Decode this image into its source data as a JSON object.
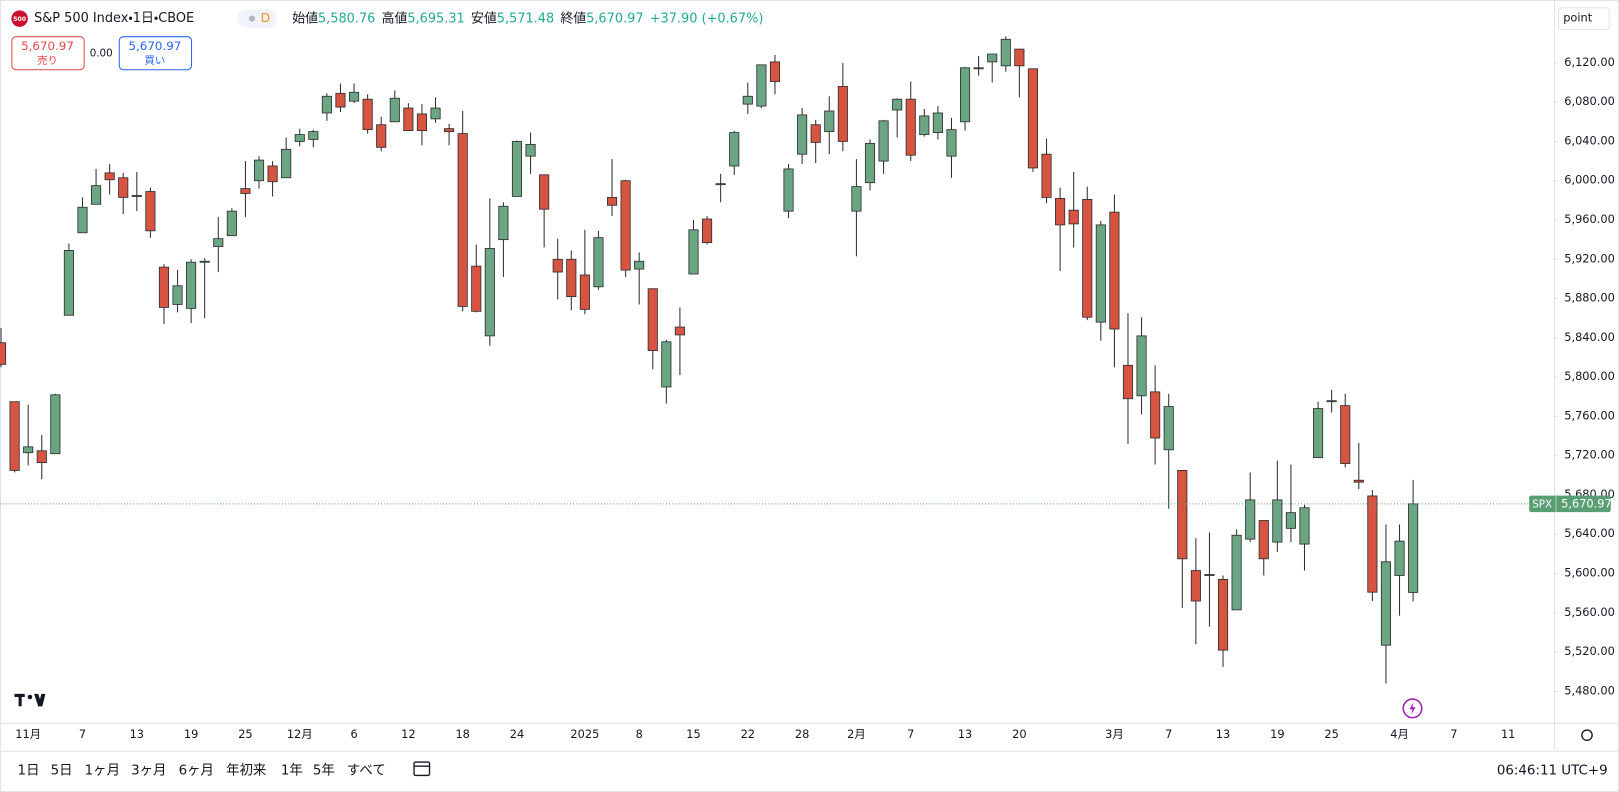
{
  "header": {
    "icon_text": "500",
    "title": "S&P 500 Index・1日・CBOE",
    "interval_badge": "D",
    "ohlc": [
      {
        "label": "始値",
        "value": "5,580.76"
      },
      {
        "label": "高値",
        "value": "5,695.31"
      },
      {
        "label": "安値",
        "value": "5,571.48"
      },
      {
        "label": "終値",
        "value": "5,670.97"
      }
    ],
    "change": "+37.90 (+0.67%)"
  },
  "trade_panel": {
    "sell_price": "5,670.97",
    "sell_label": "売り",
    "spread": "0.00",
    "buy_price": "5,670.97",
    "buy_label": "買い"
  },
  "chart_data": {
    "type": "candlestick",
    "price_axis_unit": "point",
    "categories": [
      null,
      null,
      "11月",
      null,
      null,
      null,
      "7",
      null,
      null,
      null,
      "13",
      null,
      null,
      null,
      "19",
      null,
      null,
      null,
      "25",
      null,
      null,
      null,
      "12月",
      null,
      null,
      null,
      "6",
      null,
      null,
      null,
      "12",
      null,
      null,
      null,
      "18",
      null,
      null,
      null,
      "24",
      null,
      null,
      null,
      null,
      "2025",
      null,
      null,
      null,
      "8",
      null,
      null,
      null,
      "15",
      null,
      null,
      null,
      "22",
      null,
      null,
      null,
      "28",
      null,
      null,
      null,
      "2月",
      null,
      null,
      null,
      "7",
      null,
      null,
      null,
      "13",
      null,
      null,
      null,
      "20",
      null,
      null,
      null,
      null,
      null,
      null,
      "3月",
      null,
      null,
      null,
      "7",
      null,
      null,
      null,
      "13",
      null,
      null,
      null,
      "19",
      null,
      null,
      null,
      "25",
      null,
      null,
      null,
      null,
      "4月",
      null,
      null,
      null,
      "7",
      null,
      null,
      null,
      "11"
    ],
    "open": [
      5835,
      5775,
      5723,
      5725,
      5722,
      5863,
      5947,
      5976,
      6008,
      6003,
      5985,
      5989,
      5912,
      5874,
      5870,
      5917,
      5933,
      5944,
      5992,
      6000,
      6015,
      6003,
      6040,
      6042,
      6069,
      6089,
      6081,
      6083,
      6057,
      6060,
      6074,
      6068,
      6063,
      6053,
      6048,
      5913,
      5842,
      5940,
      5984,
      6025,
      6006,
      5920,
      5920,
      5904,
      5892,
      5983,
      6000,
      5910,
      5890,
      5790,
      5851,
      5905,
      5961,
      5996,
      6015,
      6078,
      6076,
      6121,
      5969,
      6027,
      6057,
      6050,
      6096,
      5969,
      5998,
      6020,
      6072,
      6083,
      6047,
      6049,
      6025,
      6060,
      6115,
      6121,
      6117,
      6134,
      6114,
      6027,
      5982,
      5970,
      5981,
      5856,
      5968,
      5812,
      5781,
      5785,
      5726,
      5705,
      5603,
      5599,
      5594,
      5563,
      5635,
      5654,
      5632,
      5646,
      5630,
      5718,
      5775,
      5771,
      5695,
      5679,
      5527,
      5598,
      5580.76,
      null,
      null,
      null,
      null,
      null,
      null,
      null
    ],
    "high": [
      5850,
      5775,
      5772,
      5741,
      5783,
      5936,
      5983,
      6012,
      6017,
      6008,
      6009,
      5993,
      5915,
      5909,
      5920,
      5921,
      5963,
      5972,
      6020,
      6025,
      6020,
      6044,
      6053,
      6052,
      6089,
      6099,
      6099,
      6088,
      6065,
      6092,
      6079,
      6078,
      6085,
      6058,
      6071,
      5935,
      5982,
      5978,
      6041,
      6049,
      6006,
      5941,
      5929,
      5950,
      5949,
      6022,
      6001,
      5927,
      5890,
      5838,
      5871,
      5960,
      5964,
      6007,
      6051,
      6100,
      6118,
      6128,
      6017,
      6074,
      6062,
      6086,
      6120,
      6022,
      6042,
      6062,
      6084,
      6101,
      6073,
      6076,
      6064,
      6116,
      6127,
      6129,
      6147,
      6134,
      6114,
      6043,
      5993,
      6009,
      5994,
      5959,
      5986,
      5865,
      5861,
      5812,
      5783,
      5705,
      5636,
      5642,
      5598,
      5645,
      5703,
      5654,
      5715,
      5711,
      5670,
      5775,
      5787,
      5783,
      5733,
      5685,
      5650,
      5650,
      5695.31,
      null,
      null,
      null,
      null,
      null,
      null,
      null
    ],
    "low": [
      5810,
      5703,
      5710,
      5696,
      5722,
      5863,
      5947,
      5976,
      5986,
      5966,
      5969,
      5942,
      5854,
      5866,
      5855,
      5860,
      5907,
      5944,
      5963,
      5992,
      5984,
      6003,
      6035,
      6034,
      6061,
      6070,
      6079,
      6048,
      6030,
      6060,
      6051,
      6036,
      6059,
      6036,
      5867,
      5866,
      5832,
      5902,
      5984,
      6007,
      5932,
      5879,
      5868,
      5864,
      5889,
      5964,
      5902,
      5874,
      5808,
      5773,
      5802,
      5905,
      5935,
      5978,
      6006,
      6068,
      6074,
      6088,
      5962,
      6017,
      6018,
      6027,
      6030,
      5923,
      5990,
      6007,
      6044,
      6020,
      6045,
      6042,
      6003,
      6051,
      6107,
      6100,
      6111,
      6085,
      6009,
      5977,
      5908,
      5932,
      5858,
      5837,
      5810,
      5732,
      5762,
      5711,
      5666,
      5565,
      5528,
      5546,
      5505,
      5563,
      5632,
      5598,
      5622,
      5632,
      5603,
      5718,
      5764,
      5708,
      5686,
      5572,
      5488,
      5557,
      5571.48,
      null,
      null,
      null,
      null,
      null,
      null,
      null
    ],
    "close": [
      5813,
      5705,
      5729,
      5713,
      5782,
      5929,
      5973,
      5995,
      6001,
      5983,
      5985,
      5949,
      5871,
      5893,
      5917,
      5918,
      5941,
      5969,
      5987,
      6021,
      5999,
      6032,
      6047,
      6050,
      6086,
      6075,
      6090,
      6052,
      6034,
      6084,
      6051,
      6051,
      6074,
      6050,
      5872,
      5867,
      5931,
      5974,
      6040,
      6037,
      5971,
      5907,
      5882,
      5869,
      5942,
      5975,
      5909,
      5918,
      5827,
      5836,
      5843,
      5950,
      5937,
      5997,
      6049,
      6086,
      6118,
      6101,
      6012,
      6067,
      6039,
      6071,
      6040,
      5994,
      6038,
      6061,
      6083,
      6026,
      6066,
      6069,
      6052,
      6115,
      6115,
      6129,
      6144,
      6117,
      6013,
      5983,
      5955,
      5956,
      5861,
      5955,
      5849,
      5778,
      5842,
      5738,
      5770,
      5615,
      5572,
      5599,
      5522,
      5639,
      5675,
      5615,
      5675,
      5662,
      5667,
      5768,
      5776,
      5712,
      5693,
      5581,
      5612,
      5633,
      5670.97,
      null,
      null,
      null,
      null,
      null,
      null,
      null
    ],
    "up_color": "#6ba583",
    "down_color": "#d75442",
    "outline_color": "#2e2e2e",
    "ylim": [
      5448,
      6184
    ],
    "yticks": [
      {
        "value": 5480,
        "label": "5,480.00"
      },
      {
        "value": 5520,
        "label": "5,520.00"
      },
      {
        "value": 5560,
        "label": "5,560.00"
      },
      {
        "value": 5600,
        "label": "5,600.00"
      },
      {
        "value": 5640,
        "label": "5,640.00"
      },
      {
        "value": 5680,
        "label": "5,680.00"
      },
      {
        "value": 5720,
        "label": "5,720.00"
      },
      {
        "value": 5760,
        "label": "5,760.00"
      },
      {
        "value": 5800,
        "label": "5,800.00"
      },
      {
        "value": 5840,
        "label": "5,840.00"
      },
      {
        "value": 5880,
        "label": "5,880.00"
      },
      {
        "value": 5920,
        "label": "5,920.00"
      },
      {
        "value": 5960,
        "label": "5,960.00"
      },
      {
        "value": 6000,
        "label": "6,000.00"
      },
      {
        "value": 6040,
        "label": "6,040.00"
      },
      {
        "value": 6080,
        "label": "6,080.00"
      },
      {
        "value": 6120,
        "label": "6,120.00"
      }
    ],
    "grid": false,
    "last_price_symbol": "SPX",
    "last_price": {
      "value": 5670.97,
      "label": "5,670.97"
    },
    "last_price_color": "#5a9e74"
  },
  "toolbar": {
    "ranges": [
      "1日",
      "5日",
      "1ヶ月",
      "3ヶ月",
      "6ヶ月",
      "年初来",
      "1年",
      "5年",
      "すべて"
    ],
    "clock": "06:46:11 UTC+9"
  }
}
